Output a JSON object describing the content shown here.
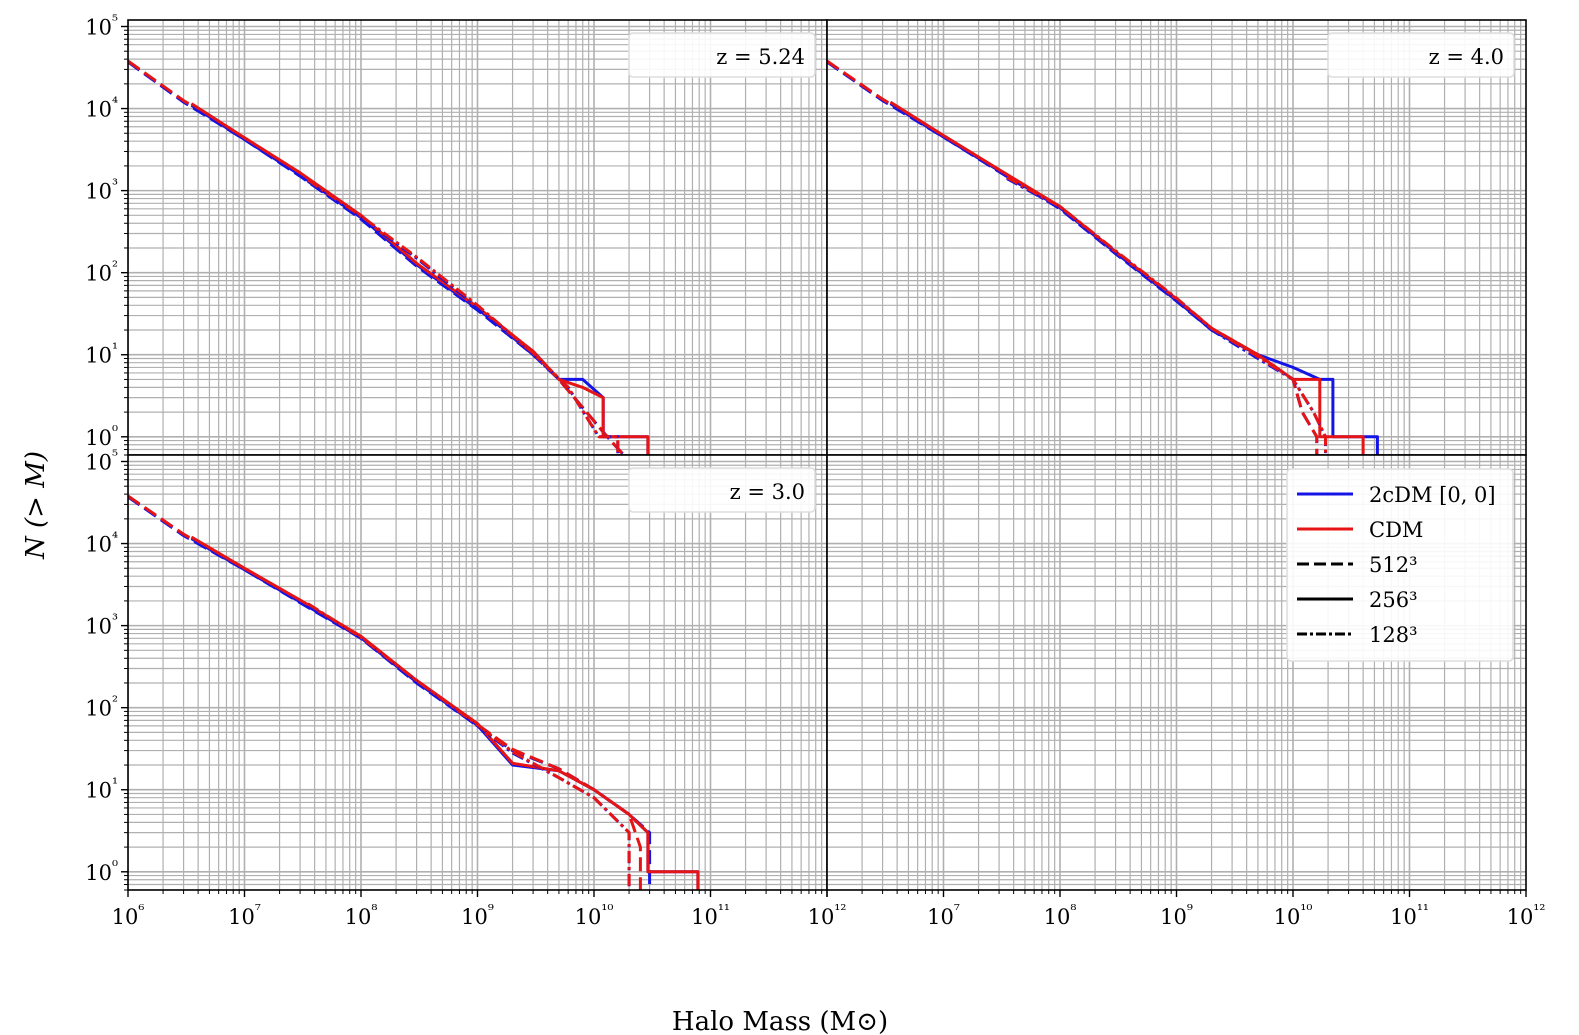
{
  "figure": {
    "xlabel": "Halo Mass (M⊙)",
    "ylabel": "N (> M)"
  },
  "legend": {
    "placement": "bottom-right-panel top-right",
    "entries": [
      {
        "label": "2cDM [0, 0]",
        "color": "#1414e6",
        "style": "solid"
      },
      {
        "label": "CDM",
        "color": "#e61414",
        "style": "solid"
      },
      {
        "label": "512³",
        "color": "#000000",
        "style": "dashed"
      },
      {
        "label": "256³",
        "color": "#000000",
        "style": "solid"
      },
      {
        "label": "128³",
        "color": "#000000",
        "style": "dashdot"
      }
    ]
  },
  "chart_data": [
    {
      "type": "line",
      "panel": "top-left",
      "annotation": "z = 5.24",
      "xscale": "log",
      "yscale": "log",
      "xlim": [
        1000000.0,
        1000000000000.0
      ],
      "ylim": [
        0.6,
        120000.0
      ],
      "xticks": [
        "10⁶",
        "10⁷",
        "10⁸",
        "10⁹",
        "10¹⁰",
        "10¹¹",
        "10¹²"
      ],
      "yticks": [
        "10⁰",
        "10¹",
        "10²",
        "10³",
        "10⁴",
        "10⁵"
      ],
      "grid": true,
      "series": [
        {
          "model": "2cDM [0, 0]",
          "resolution": "512³",
          "color": "#1414e6",
          "style": "dashed",
          "x": [
            1000000.0,
            3000000.0,
            10000000.0,
            30000000.0,
            100000000.0,
            300000000.0,
            1000000000.0,
            3000000000.0,
            5000000000.0,
            13000000000.0,
            18000000000.0
          ],
          "y": [
            37000,
            12000,
            4200,
            1500,
            450,
            120,
            35,
            10,
            5,
            1,
            0.6
          ]
        },
        {
          "model": "CDM",
          "resolution": "512³",
          "color": "#e61414",
          "style": "dashed",
          "x": [
            1000000.0,
            3000000.0,
            10000000.0,
            30000000.0,
            100000000.0,
            300000000.0,
            1000000000.0,
            3000000000.0,
            5000000000.0,
            13000000000.0,
            18000000000.0
          ],
          "y": [
            38000,
            12500,
            4400,
            1600,
            480,
            125,
            37,
            10.5,
            5,
            1,
            0.6
          ]
        },
        {
          "model": "2cDM [0, 0]",
          "resolution": "256³",
          "color": "#1414e6",
          "style": "solid",
          "x": [
            3500000.0,
            10000000.0,
            30000000.0,
            100000000.0,
            300000000.0,
            1000000000.0,
            3000000000.0,
            5000000000.0,
            8000000000.0,
            12000000000.0,
            12000000000.0,
            20000000000.0,
            20000000000.0,
            29000000000.0,
            29000000000.0
          ],
          "y": [
            11000,
            4200,
            1550,
            470,
            125,
            36,
            11,
            5,
            5,
            3,
            1,
            1,
            1,
            1,
            0.6
          ]
        },
        {
          "model": "CDM",
          "resolution": "256³",
          "color": "#e61414",
          "style": "solid",
          "x": [
            3500000.0,
            10000000.0,
            30000000.0,
            100000000.0,
            300000000.0,
            1000000000.0,
            3000000000.0,
            5000000000.0,
            8000000000.0,
            12000000000.0,
            12000000000.0,
            20000000000.0,
            29000000000.0,
            29000000000.0
          ],
          "y": [
            11500,
            4400,
            1650,
            500,
            130,
            38,
            11,
            5,
            4,
            3,
            1,
            1,
            1,
            0.6
          ]
        },
        {
          "model": "2cDM [0, 0]",
          "resolution": "128³",
          "color": "#1414e6",
          "style": "dashdot",
          "x": [
            35000000.0,
            100000000.0,
            300000000.0,
            1000000000.0,
            3000000000.0,
            6000000000.0,
            11000000000.0,
            16000000000.0,
            16000000000.0
          ],
          "y": [
            1300,
            470,
            150,
            38,
            10,
            4,
            1,
            1,
            0.6
          ]
        },
        {
          "model": "CDM",
          "resolution": "128³",
          "color": "#e61414",
          "style": "dashdot",
          "x": [
            35000000.0,
            100000000.0,
            300000000.0,
            1000000000.0,
            3000000000.0,
            6000000000.0,
            11000000000.0,
            16000000000.0,
            16000000000.0
          ],
          "y": [
            1350,
            490,
            155,
            40,
            10.5,
            4,
            1,
            1,
            0.6
          ]
        }
      ]
    },
    {
      "type": "line",
      "panel": "top-right",
      "annotation": "z = 4.0",
      "xscale": "log",
      "yscale": "log",
      "xlim": [
        1000000.0,
        1000000000000.0
      ],
      "ylim": [
        0.6,
        120000.0
      ],
      "xticks": [
        "10⁶",
        "10⁷",
        "10⁸",
        "10⁹",
        "10¹⁰",
        "10¹¹",
        "10¹²"
      ],
      "yticks": [
        "10⁰",
        "10¹",
        "10²",
        "10³",
        "10⁴",
        "10⁵"
      ],
      "grid": true,
      "series": [
        {
          "model": "2cDM [0, 0]",
          "resolution": "512³",
          "color": "#1414e6",
          "style": "dashed",
          "x": [
            1000000.0,
            3000000.0,
            10000000.0,
            30000000.0,
            100000000.0,
            300000000.0,
            1000000000.0,
            2000000000.0,
            5000000000.0,
            10000000000.0,
            12000000000.0,
            16000000000.0,
            16000000000.0
          ],
          "y": [
            37000,
            12500,
            4500,
            1700,
            600,
            170,
            45,
            20,
            10,
            5,
            2,
            1,
            0.6
          ]
        },
        {
          "model": "CDM",
          "resolution": "512³",
          "color": "#e61414",
          "style": "dashed",
          "x": [
            1000000.0,
            3000000.0,
            10000000.0,
            30000000.0,
            100000000.0,
            300000000.0,
            1000000000.0,
            2000000000.0,
            5000000000.0,
            10000000000.0,
            12000000000.0,
            16000000000.0,
            16000000000.0
          ],
          "y": [
            38000,
            13000,
            4700,
            1750,
            620,
            175,
            47,
            21,
            10,
            5,
            2,
            1,
            0.6
          ]
        },
        {
          "model": "2cDM [0, 0]",
          "resolution": "256³",
          "color": "#1414e6",
          "style": "solid",
          "x": [
            3500000.0,
            10000000.0,
            30000000.0,
            100000000.0,
            300000000.0,
            1000000000.0,
            2000000000.0,
            5000000000.0,
            10000000000.0,
            17000000000.0,
            22000000000.0,
            22000000000.0,
            53000000000.0,
            53000000000.0
          ],
          "y": [
            11500,
            4500,
            1750,
            620,
            175,
            46,
            20,
            10,
            7,
            5,
            5,
            1,
            1,
            0.6
          ]
        },
        {
          "model": "CDM",
          "resolution": "256³",
          "color": "#e61414",
          "style": "solid",
          "x": [
            3500000.0,
            10000000.0,
            30000000.0,
            100000000.0,
            300000000.0,
            1000000000.0,
            2000000000.0,
            5000000000.0,
            10000000000.0,
            17000000000.0,
            17000000000.0,
            40000000000.0,
            40000000000.0
          ],
          "y": [
            12000,
            4700,
            1800,
            640,
            180,
            48,
            21,
            10,
            5,
            5,
            1,
            1,
            0.6
          ]
        },
        {
          "model": "2cDM [0, 0]",
          "resolution": "128³",
          "color": "#1414e6",
          "style": "dashdot",
          "x": [
            35000000.0,
            100000000.0,
            300000000.0,
            1000000000.0,
            2000000000.0,
            5000000000.0,
            10000000000.0,
            15000000000.0,
            19000000000.0,
            19000000000.0
          ],
          "y": [
            1400,
            620,
            180,
            47,
            20,
            9,
            5,
            2,
            1,
            0.6
          ]
        },
        {
          "model": "CDM",
          "resolution": "128³",
          "color": "#e61414",
          "style": "dashdot",
          "x": [
            35000000.0,
            100000000.0,
            300000000.0,
            1000000000.0,
            2000000000.0,
            5000000000.0,
            10000000000.0,
            15000000000.0,
            19000000000.0,
            19000000000.0
          ],
          "y": [
            1450,
            640,
            185,
            49,
            21,
            9.5,
            5,
            2,
            1,
            0.6
          ]
        }
      ]
    },
    {
      "type": "line",
      "panel": "bottom-left",
      "annotation": "z = 3.0",
      "xscale": "log",
      "yscale": "log",
      "xlim": [
        1000000.0,
        1000000000000.0
      ],
      "ylim": [
        0.6,
        120000.0
      ],
      "xticks": [
        "10⁶",
        "10⁷",
        "10⁸",
        "10⁹",
        "10¹⁰",
        "10¹¹",
        "10¹²"
      ],
      "yticks": [
        "10⁰",
        "10¹",
        "10²",
        "10³",
        "10⁴",
        "10⁵"
      ],
      "grid": true,
      "series": [
        {
          "model": "2cDM [0, 0]",
          "resolution": "512³",
          "color": "#1414e6",
          "style": "dashed",
          "x": [
            1000000.0,
            3000000.0,
            10000000.0,
            30000000.0,
            100000000.0,
            300000000.0,
            1000000000.0,
            2000000000.0,
            5000000000.0,
            10000000000.0,
            20000000000.0,
            30000000000.0,
            30000000000.0
          ],
          "y": [
            37000,
            12500,
            4800,
            1900,
            700,
            200,
            60,
            30,
            18,
            10,
            5,
            3,
            0.6
          ]
        },
        {
          "model": "CDM",
          "resolution": "512³",
          "color": "#e61414",
          "style": "dashed",
          "x": [
            1000000.0,
            3000000.0,
            10000000.0,
            30000000.0,
            100000000.0,
            300000000.0,
            1000000000.0,
            2000000000.0,
            5000000000.0,
            10000000000.0,
            20000000000.0,
            25000000000.0,
            25000000000.0
          ],
          "y": [
            38000,
            13000,
            5000,
            2000,
            720,
            210,
            62,
            31,
            18,
            10,
            5,
            2,
            0.6
          ]
        },
        {
          "model": "2cDM [0, 0]",
          "resolution": "256³",
          "color": "#1414e6",
          "style": "solid",
          "x": [
            3500000.0,
            10000000.0,
            30000000.0,
            100000000.0,
            300000000.0,
            1000000000.0,
            2000000000.0,
            5000000000.0,
            10000000000.0,
            20000000000.0,
            29000000000.0,
            29000000000.0,
            78000000000.0,
            78000000000.0
          ],
          "y": [
            11500,
            4800,
            1950,
            710,
            205,
            61,
            20,
            17,
            10,
            5,
            3,
            1,
            1,
            0.6
          ]
        },
        {
          "model": "CDM",
          "resolution": "256³",
          "color": "#e61414",
          "style": "solid",
          "x": [
            3500000.0,
            10000000.0,
            30000000.0,
            100000000.0,
            300000000.0,
            1000000000.0,
            2000000000.0,
            5000000000.0,
            10000000000.0,
            20000000000.0,
            29000000000.0,
            29000000000.0,
            78000000000.0,
            78000000000.0
          ],
          "y": [
            12000,
            5000,
            2050,
            740,
            215,
            64,
            21,
            17,
            10,
            5,
            3,
            1,
            1,
            0.6
          ]
        },
        {
          "model": "2cDM [0, 0]",
          "resolution": "128³",
          "color": "#1414e6",
          "style": "dashdot",
          "x": [
            35000000.0,
            100000000.0,
            300000000.0,
            1000000000.0,
            2000000000.0,
            5000000000.0,
            10000000000.0,
            20000000000.0,
            20000000000.0
          ],
          "y": [
            1800,
            700,
            210,
            60,
            28,
            14,
            8,
            3,
            0.6
          ]
        },
        {
          "model": "CDM",
          "resolution": "128³",
          "color": "#e61414",
          "style": "dashdot",
          "x": [
            35000000.0,
            100000000.0,
            300000000.0,
            1000000000.0,
            2000000000.0,
            5000000000.0,
            10000000000.0,
            20000000000.0,
            20000000000.0
          ],
          "y": [
            1850,
            720,
            215,
            62,
            29,
            14,
            8,
            3,
            0.6
          ]
        }
      ]
    },
    {
      "type": "line",
      "panel": "bottom-right",
      "annotation": "",
      "xscale": "log",
      "yscale": "log",
      "xlim": [
        1000000.0,
        1000000000000.0
      ],
      "ylim": [
        0.6,
        120000.0
      ],
      "xticks": [
        "10⁶",
        "10⁷",
        "10⁸",
        "10⁹",
        "10¹⁰",
        "10¹¹",
        "10¹²"
      ],
      "grid": true,
      "series": []
    }
  ]
}
